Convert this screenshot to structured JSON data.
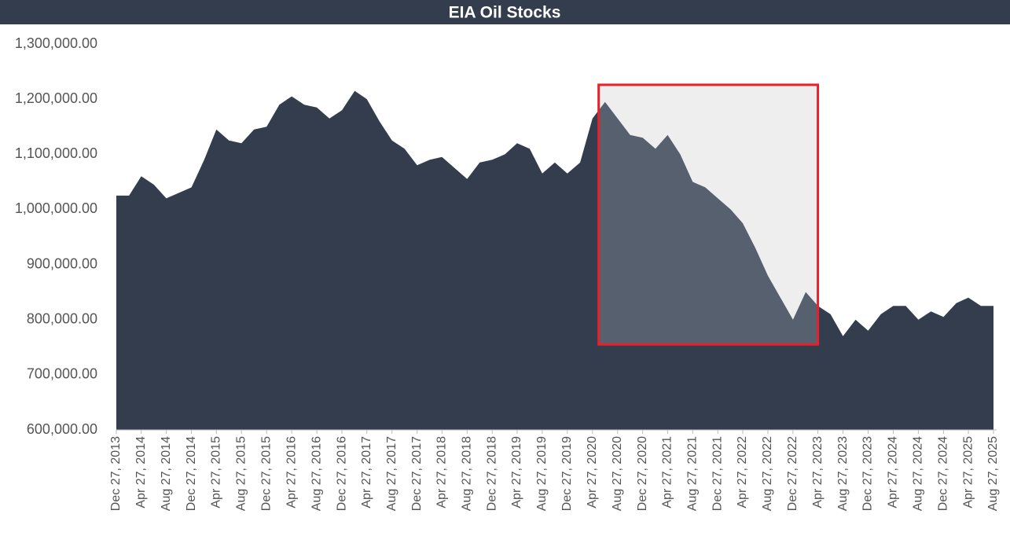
{
  "chart_data": {
    "type": "area",
    "title": "EIA Oil Stocks",
    "color": "#333d4d",
    "x": [
      "Dec 27, 2013",
      "Feb 27, 2014",
      "Apr 27, 2014",
      "Jun 27, 2014",
      "Aug 27, 2014",
      "Oct 27, 2014",
      "Dec 27, 2014",
      "Feb 27, 2015",
      "Apr 27, 2015",
      "Jun 27, 2015",
      "Aug 27, 2015",
      "Oct 27, 2015",
      "Dec 27, 2015",
      "Feb 27, 2016",
      "Apr 27, 2016",
      "Jun 27, 2016",
      "Aug 27, 2016",
      "Oct 27, 2016",
      "Dec 27, 2016",
      "Feb 27, 2017",
      "Apr 27, 2017",
      "Jun 27, 2017",
      "Aug 27, 2017",
      "Oct 27, 2017",
      "Dec 27, 2017",
      "Feb 27, 2018",
      "Apr 27, 2018",
      "Jun 27, 2018",
      "Aug 27, 2018",
      "Oct 27, 2018",
      "Dec 27, 2018",
      "Feb 27, 2019",
      "Apr 27, 2019",
      "Jun 27, 2019",
      "Aug 27, 2019",
      "Oct 27, 2019",
      "Dec 27, 2019",
      "Feb 27, 2020",
      "Apr 27, 2020",
      "Jun 27, 2020",
      "Aug 27, 2020",
      "Oct 27, 2020",
      "Dec 27, 2020",
      "Feb 27, 2021",
      "Apr 27, 2021",
      "Jun 27, 2021",
      "Aug 27, 2021",
      "Oct 27, 2021",
      "Dec 27, 2021",
      "Feb 27, 2022",
      "Apr 27, 2022",
      "Jun 27, 2022",
      "Aug 27, 2022",
      "Oct 27, 2022",
      "Dec 27, 2022",
      "Feb 27, 2023",
      "Apr 27, 2023",
      "Jun 27, 2023",
      "Aug 27, 2023",
      "Oct 27, 2023",
      "Dec 27, 2023",
      "Feb 27, 2024",
      "Apr 27, 2024",
      "Jun 27, 2024",
      "Aug 27, 2024",
      "Oct 27, 2024",
      "Dec 27, 2024",
      "Feb 27, 2025",
      "Apr 27, 2025",
      "Jun 27, 2025",
      "Aug 27, 2025"
    ],
    "values": [
      1025000,
      1025000,
      1060000,
      1045000,
      1020000,
      1030000,
      1040000,
      1090000,
      1145000,
      1125000,
      1120000,
      1145000,
      1150000,
      1190000,
      1205000,
      1190000,
      1185000,
      1165000,
      1180000,
      1215000,
      1200000,
      1160000,
      1125000,
      1110000,
      1080000,
      1090000,
      1095000,
      1075000,
      1055000,
      1085000,
      1090000,
      1100000,
      1120000,
      1110000,
      1065000,
      1085000,
      1065000,
      1085000,
      1165000,
      1195000,
      1165000,
      1135000,
      1130000,
      1110000,
      1135000,
      1100000,
      1050000,
      1040000,
      1020000,
      1000000,
      975000,
      930000,
      880000,
      840000,
      800000,
      850000,
      825000,
      810000,
      770000,
      800000,
      780000,
      810000,
      825000,
      825000,
      800000,
      815000,
      805000,
      830000,
      840000,
      825000,
      825000
    ],
    "xlim": [
      "Dec 27, 2013",
      "Aug 27, 2025"
    ],
    "xticks": [
      "Dec 27, 2013",
      "Apr 27, 2014",
      "Aug 27, 2014",
      "Dec 27, 2014",
      "Apr 27, 2015",
      "Aug 27, 2015",
      "Dec 27, 2015",
      "Apr 27, 2016",
      "Aug 27, 2016",
      "Dec 27, 2016",
      "Apr 27, 2017",
      "Aug 27, 2017",
      "Dec 27, 2017",
      "Apr 27, 2018",
      "Aug 27, 2018",
      "Dec 27, 2018",
      "Apr 27, 2019",
      "Aug 27, 2019",
      "Dec 27, 2019",
      "Apr 27, 2020",
      "Aug 27, 2020",
      "Dec 27, 2020",
      "Apr 27, 2021",
      "Aug 27, 2021",
      "Dec 27, 2021",
      "Apr 27, 2022",
      "Aug 27, 2022",
      "Dec 27, 2022",
      "Apr 27, 2023",
      "Aug 27, 2023",
      "Dec 27, 2023",
      "Apr 27, 2024",
      "Aug 27, 2024",
      "Dec 27, 2024",
      "Apr 27, 2025",
      "Aug 27, 2025"
    ],
    "ylim": [
      600000,
      1300000
    ],
    "yticks": [
      {
        "value": 600000,
        "label": "600,000.00"
      },
      {
        "value": 700000,
        "label": "700,000.00"
      },
      {
        "value": 800000,
        "label": "800,000.00"
      },
      {
        "value": 900000,
        "label": "900,000.00"
      },
      {
        "value": 1000000,
        "label": "1,000,000.00"
      },
      {
        "value": 1100000,
        "label": "1,100,000.00"
      },
      {
        "value": 1200000,
        "label": "1,200,000.00"
      },
      {
        "value": 1300000,
        "label": "1,300,000.00"
      }
    ],
    "grid": false,
    "highlight": {
      "xlim": [
        "May 27, 2020",
        "Apr 27, 2023"
      ],
      "ylim": [
        755000,
        1226000
      ],
      "color": "#e8202a"
    }
  }
}
